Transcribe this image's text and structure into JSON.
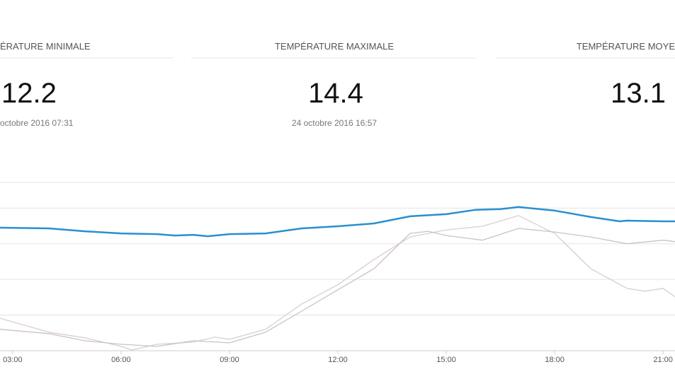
{
  "stats": [
    {
      "title": "ÉRATURE MINIMALE",
      "value": "12.2",
      "date": "octobre 2016 07:31"
    },
    {
      "title": "TEMPÉRATURE MAXIMALE",
      "value": "14.4",
      "date": "24 octobre 2016 16:57"
    },
    {
      "title": "TEMPÉRATURE MOYE",
      "value": "13.1"
    }
  ],
  "chart_data": {
    "type": "line",
    "xlim": [
      2.65,
      21.33
    ],
    "xticks": [
      {
        "value": 3,
        "label": "03:00"
      },
      {
        "value": 6,
        "label": "06:00"
      },
      {
        "value": 9,
        "label": "09:00"
      },
      {
        "value": 12,
        "label": "12:00"
      },
      {
        "value": 15,
        "label": "15:00"
      },
      {
        "value": 18,
        "label": "18:00"
      },
      {
        "value": 21,
        "label": "21:00"
      }
    ],
    "ylim": [
      0,
      4.72
    ],
    "yticks": [
      0,
      1,
      2,
      3,
      4,
      4.72
    ],
    "grid": true,
    "series": [
      {
        "color": "#d8cdd0",
        "x": [
          2.65,
          4,
          5,
          6,
          6.3,
          7,
          8,
          8.6,
          9,
          10,
          11,
          12,
          13,
          14,
          15,
          16,
          17,
          18,
          19,
          20,
          20.5,
          21,
          21.33
        ],
        "values": [
          0.91,
          0.52,
          0.36,
          0.12,
          0.02,
          0.18,
          0.24,
          0.38,
          0.32,
          0.6,
          1.31,
          1.85,
          2.56,
          3.19,
          3.39,
          3.49,
          3.79,
          3.29,
          2.3,
          1.75,
          1.67,
          1.75,
          1.51
        ]
      },
      {
        "color": "#cbc2c6",
        "x": [
          2.65,
          4,
          5,
          6,
          7,
          8,
          9,
          10,
          11,
          12,
          13,
          14,
          14.5,
          15,
          16,
          17,
          18,
          19,
          20,
          21,
          21.33
        ],
        "values": [
          0.6,
          0.48,
          0.28,
          0.18,
          0.12,
          0.28,
          0.22,
          0.52,
          1.11,
          1.71,
          2.3,
          3.29,
          3.35,
          3.23,
          3.1,
          3.43,
          3.33,
          3.19,
          3.0,
          3.1,
          3.06
        ]
      },
      {
        "color": "#2a8fcf",
        "x": [
          2.65,
          4,
          5,
          6,
          7,
          7.5,
          8,
          8.4,
          9,
          10,
          11,
          12,
          13,
          14,
          15,
          15.8,
          16.5,
          17,
          18,
          19,
          19.8,
          20,
          21,
          21.33
        ],
        "values": [
          3.45,
          3.43,
          3.35,
          3.29,
          3.27,
          3.23,
          3.25,
          3.21,
          3.27,
          3.29,
          3.43,
          3.49,
          3.57,
          3.77,
          3.83,
          3.95,
          3.97,
          4.03,
          3.93,
          3.75,
          3.63,
          3.65,
          3.63,
          3.63
        ]
      }
    ]
  }
}
